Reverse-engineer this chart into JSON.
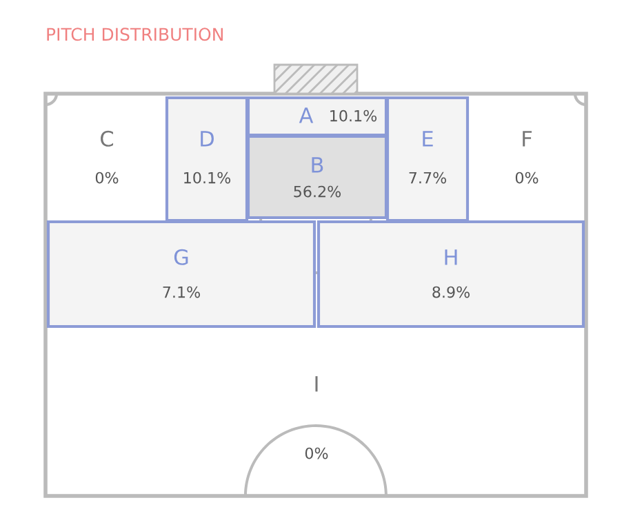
{
  "chart_data": {
    "type": "other",
    "title": "PITCH DISTRIBUTION",
    "categories": [
      "A",
      "B",
      "C",
      "D",
      "E",
      "F",
      "G",
      "H",
      "I"
    ],
    "values": [
      10.1,
      56.2,
      0,
      10.1,
      7.7,
      0,
      7.1,
      8.9,
      0
    ],
    "value_labels": [
      "10.1%",
      "56.2%",
      "0%",
      "10.1%",
      "7.7%",
      "0%",
      "7.1%",
      "8.9%",
      "0%"
    ]
  }
}
